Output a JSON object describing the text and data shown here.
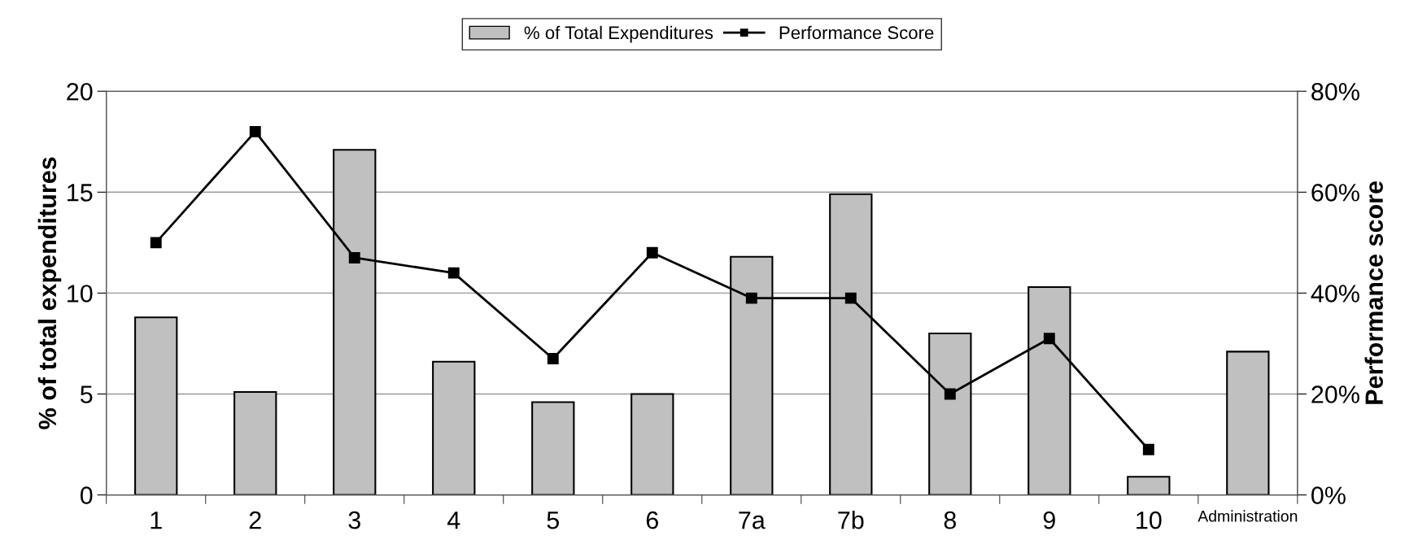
{
  "chart_data": {
    "type": "bar",
    "ylabel": "% of total expenditures",
    "y2label": "Performance score",
    "categories": [
      "1",
      "2",
      "3",
      "4",
      "5",
      "6",
      "7a",
      "7b",
      "8",
      "9",
      "10",
      "Administration"
    ],
    "series": [
      {
        "name": "% of Total Expenditures",
        "color": "#c0c0c0",
        "values": [
          8.8,
          5.1,
          17.1,
          6.6,
          4.6,
          5.0,
          11.8,
          14.9,
          8.0,
          10.3,
          0.9,
          7.1
        ]
      },
      {
        "name": "Performance Score",
        "type": "line",
        "axis": "y2",
        "color": "#000000",
        "marker": "square",
        "values": [
          50,
          72,
          47,
          44,
          27,
          48,
          39,
          39,
          20,
          31,
          9,
          null
        ]
      }
    ],
    "ylim": [
      0,
      20
    ],
    "yticks": [
      0,
      5,
      10,
      15,
      20
    ],
    "y2lim": [
      0,
      80
    ],
    "y2ticks": [
      {
        "value": 0,
        "label": "0%"
      },
      {
        "value": 20,
        "label": "20%"
      },
      {
        "value": 40,
        "label": "40%"
      },
      {
        "value": 60,
        "label": "60%"
      },
      {
        "value": 80,
        "label": "80%"
      }
    ],
    "grid": "y",
    "legend": "top"
  }
}
